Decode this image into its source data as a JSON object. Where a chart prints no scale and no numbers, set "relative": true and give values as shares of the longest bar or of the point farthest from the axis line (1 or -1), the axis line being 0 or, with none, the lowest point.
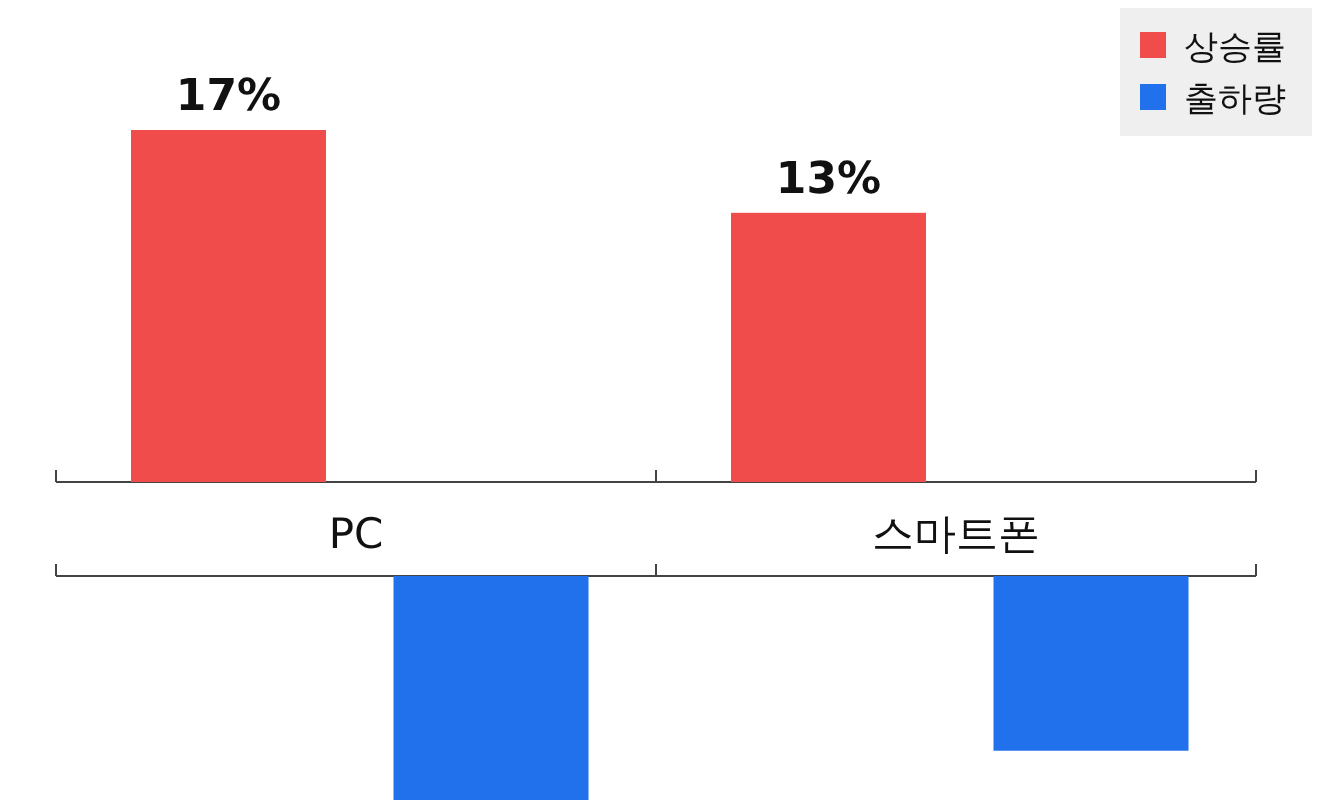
{
  "chart_data": [
    {
      "type": "bar",
      "categories": [
        "PC",
        "스마트폰"
      ],
      "legend": "top right",
      "series": [
        {
          "name": "상승률",
          "color": "#f04c4c",
          "values": [
            17,
            13
          ],
          "value_labels": [
            "17%",
            "13%"
          ]
        }
      ]
    },
    {
      "type": "bar",
      "categories": [
        null,
        null
      ],
      "relative": true,
      "series": [
        {
          "name": "출하량",
          "color": "#2271ec",
          "values": [
            -1,
            -0.78
          ]
        }
      ]
    }
  ]
}
